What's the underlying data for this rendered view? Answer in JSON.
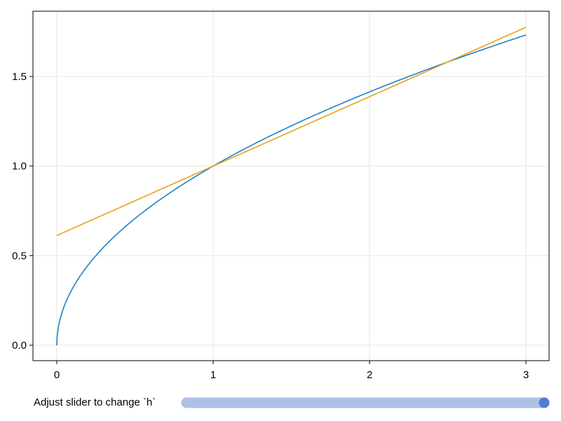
{
  "chart_data": {
    "type": "line",
    "title": "",
    "xlabel": "",
    "ylabel": "",
    "xlim": [
      -0.15,
      3.15
    ],
    "ylim": [
      -0.09,
      1.86
    ],
    "xticks": [
      "0",
      "1",
      "2",
      "3"
    ],
    "yticks": [
      "0.0",
      "0.5",
      "1.0",
      "1.5"
    ],
    "grid": true,
    "series": [
      {
        "function": "sqrt(x)",
        "x_range": [
          0,
          3
        ],
        "color": "#1f82c0"
      },
      {
        "function": "secant of sqrt(x) through x=1 and x=1+h",
        "x_range": [
          0,
          3
        ],
        "color": "#e6a11a"
      }
    ],
    "h": 1.5
  },
  "slider": {
    "label": "Adjust slider to change `h`",
    "value_fraction": 1.0,
    "track_color": "#aec0e6",
    "knob_color": "#4f7bd4"
  }
}
